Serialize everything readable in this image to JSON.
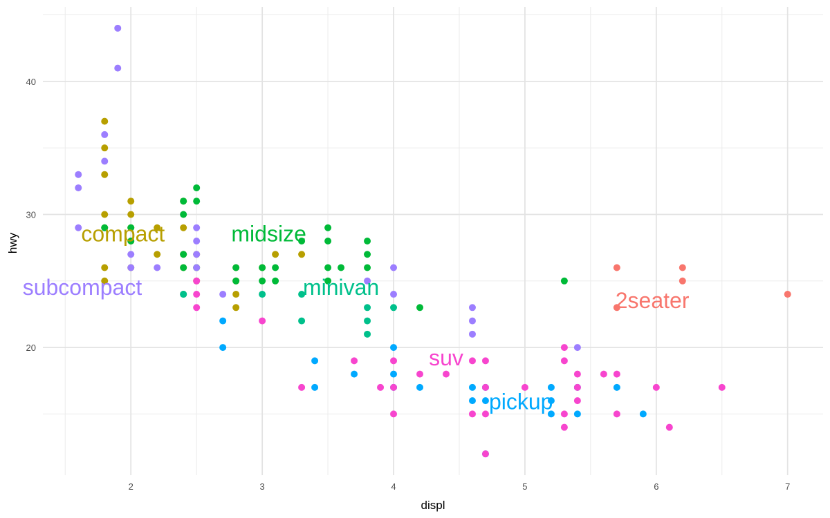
{
  "chart_data": {
    "type": "scatter",
    "xlabel": "displ",
    "ylabel": "hwy",
    "xlim": [
      1.33,
      7.27
    ],
    "ylim": [
      10.4,
      45.6
    ],
    "x_ticks": [
      "2",
      "3",
      "4",
      "5",
      "6",
      "7"
    ],
    "y_ticks": [
      "20",
      "30",
      "40"
    ],
    "x_tick_values": [
      2,
      3,
      4,
      5,
      6,
      7
    ],
    "y_tick_values": [
      20,
      30,
      40
    ],
    "grid": true,
    "legend": "none",
    "groups": [
      {
        "name": "2seater",
        "color": "#F8766D",
        "label": {
          "text": "2seater",
          "x": 5.97,
          "y": 23.4
        },
        "points": [
          [
            5.7,
            26
          ],
          [
            5.7,
            23
          ],
          [
            6.2,
            26
          ],
          [
            6.2,
            25
          ],
          [
            7.0,
            24
          ]
        ]
      },
      {
        "name": "compact",
        "color": "#B79F00",
        "label": {
          "text": "compact",
          "x": 1.94,
          "y": 28.4
        },
        "points": [
          [
            1.8,
            37
          ],
          [
            1.8,
            35
          ],
          [
            1.8,
            33
          ],
          [
            1.8,
            30
          ],
          [
            1.8,
            29
          ],
          [
            1.8,
            26
          ],
          [
            1.8,
            25
          ],
          [
            2.0,
            31
          ],
          [
            2.0,
            30
          ],
          [
            2.0,
            29
          ],
          [
            2.0,
            28
          ],
          [
            2.0,
            26
          ],
          [
            2.2,
            29
          ],
          [
            2.2,
            27
          ],
          [
            2.4,
            31
          ],
          [
            2.4,
            29
          ],
          [
            2.4,
            27
          ],
          [
            2.4,
            26
          ],
          [
            2.5,
            27
          ],
          [
            2.5,
            26
          ],
          [
            2.5,
            25
          ],
          [
            2.8,
            26
          ],
          [
            2.8,
            25
          ],
          [
            2.8,
            24
          ],
          [
            2.8,
            23
          ],
          [
            3.0,
            26
          ],
          [
            3.1,
            27
          ],
          [
            3.3,
            27
          ]
        ]
      },
      {
        "name": "midsize",
        "color": "#00BA38",
        "label": {
          "text": "midsize",
          "x": 3.05,
          "y": 28.4
        },
        "points": [
          [
            1.8,
            29
          ],
          [
            2.0,
            29
          ],
          [
            2.0,
            28
          ],
          [
            2.4,
            31
          ],
          [
            2.4,
            30
          ],
          [
            2.4,
            27
          ],
          [
            2.4,
            26
          ],
          [
            2.4,
            24
          ],
          [
            2.5,
            32
          ],
          [
            2.5,
            31
          ],
          [
            2.5,
            26
          ],
          [
            2.8,
            26
          ],
          [
            2.8,
            25
          ],
          [
            3.0,
            26
          ],
          [
            3.0,
            25
          ],
          [
            3.1,
            26
          ],
          [
            3.1,
            25
          ],
          [
            3.3,
            28
          ],
          [
            3.5,
            29
          ],
          [
            3.5,
            28
          ],
          [
            3.5,
            26
          ],
          [
            3.5,
            25
          ],
          [
            3.6,
            26
          ],
          [
            3.8,
            28
          ],
          [
            3.8,
            27
          ],
          [
            3.8,
            26
          ],
          [
            4.2,
            23
          ],
          [
            5.3,
            25
          ]
        ]
      },
      {
        "name": "minivan",
        "color": "#00C08B",
        "label": {
          "text": "minivan",
          "x": 3.6,
          "y": 24.4
        },
        "points": [
          [
            2.4,
            24
          ],
          [
            3.0,
            24
          ],
          [
            3.3,
            24
          ],
          [
            3.3,
            22
          ],
          [
            3.8,
            23
          ],
          [
            3.8,
            22
          ],
          [
            3.8,
            21
          ],
          [
            4.0,
            23
          ]
        ]
      },
      {
        "name": "pickup",
        "color": "#00A9FF",
        "label": {
          "text": "pickup",
          "x": 4.97,
          "y": 15.8
        },
        "points": [
          [
            2.7,
            22
          ],
          [
            2.7,
            20
          ],
          [
            3.4,
            19
          ],
          [
            3.4,
            17
          ],
          [
            3.7,
            18
          ],
          [
            4.0,
            20
          ],
          [
            4.0,
            18
          ],
          [
            4.0,
            17
          ],
          [
            4.2,
            17
          ],
          [
            4.6,
            17
          ],
          [
            4.6,
            16
          ],
          [
            4.7,
            17
          ],
          [
            4.7,
            16
          ],
          [
            4.7,
            12
          ],
          [
            5.2,
            17
          ],
          [
            5.2,
            16
          ],
          [
            5.2,
            15
          ],
          [
            5.4,
            17
          ],
          [
            5.4,
            15
          ],
          [
            5.7,
            17
          ],
          [
            5.9,
            15
          ]
        ]
      },
      {
        "name": "subcompact",
        "color": "#9C7EFF",
        "label": {
          "text": "subcompact",
          "x": 1.63,
          "y": 24.4
        },
        "points": [
          [
            1.6,
            33
          ],
          [
            1.6,
            32
          ],
          [
            1.6,
            29
          ],
          [
            1.8,
            36
          ],
          [
            1.8,
            34
          ],
          [
            1.9,
            44
          ],
          [
            1.9,
            41
          ],
          [
            2.0,
            27
          ],
          [
            2.0,
            26
          ],
          [
            2.2,
            26
          ],
          [
            2.5,
            29
          ],
          [
            2.5,
            28
          ],
          [
            2.5,
            27
          ],
          [
            2.5,
            26
          ],
          [
            2.7,
            24
          ],
          [
            3.8,
            25
          ],
          [
            4.0,
            26
          ],
          [
            4.0,
            24
          ],
          [
            4.6,
            23
          ],
          [
            4.6,
            22
          ],
          [
            4.6,
            21
          ],
          [
            5.4,
            20
          ]
        ]
      },
      {
        "name": "suv",
        "color": "#F745CE",
        "label": {
          "text": "suv",
          "x": 4.4,
          "y": 19.1
        },
        "points": [
          [
            2.5,
            24
          ],
          [
            2.5,
            23
          ],
          [
            2.5,
            25
          ],
          [
            3.0,
            22
          ],
          [
            3.3,
            17
          ],
          [
            3.7,
            19
          ],
          [
            3.9,
            17
          ],
          [
            4.0,
            19
          ],
          [
            4.0,
            17
          ],
          [
            4.0,
            15
          ],
          [
            4.2,
            18
          ],
          [
            4.4,
            18
          ],
          [
            4.6,
            19
          ],
          [
            4.6,
            15
          ],
          [
            4.7,
            19
          ],
          [
            4.7,
            17
          ],
          [
            4.7,
            15
          ],
          [
            4.7,
            12
          ],
          [
            5.0,
            17
          ],
          [
            5.3,
            20
          ],
          [
            5.3,
            19
          ],
          [
            5.3,
            15
          ],
          [
            5.3,
            14
          ],
          [
            5.4,
            18
          ],
          [
            5.4,
            17
          ],
          [
            5.4,
            16
          ],
          [
            5.6,
            18
          ],
          [
            5.7,
            18
          ],
          [
            5.7,
            15
          ],
          [
            6.0,
            17
          ],
          [
            6.1,
            14
          ],
          [
            6.5,
            17
          ]
        ]
      }
    ]
  }
}
